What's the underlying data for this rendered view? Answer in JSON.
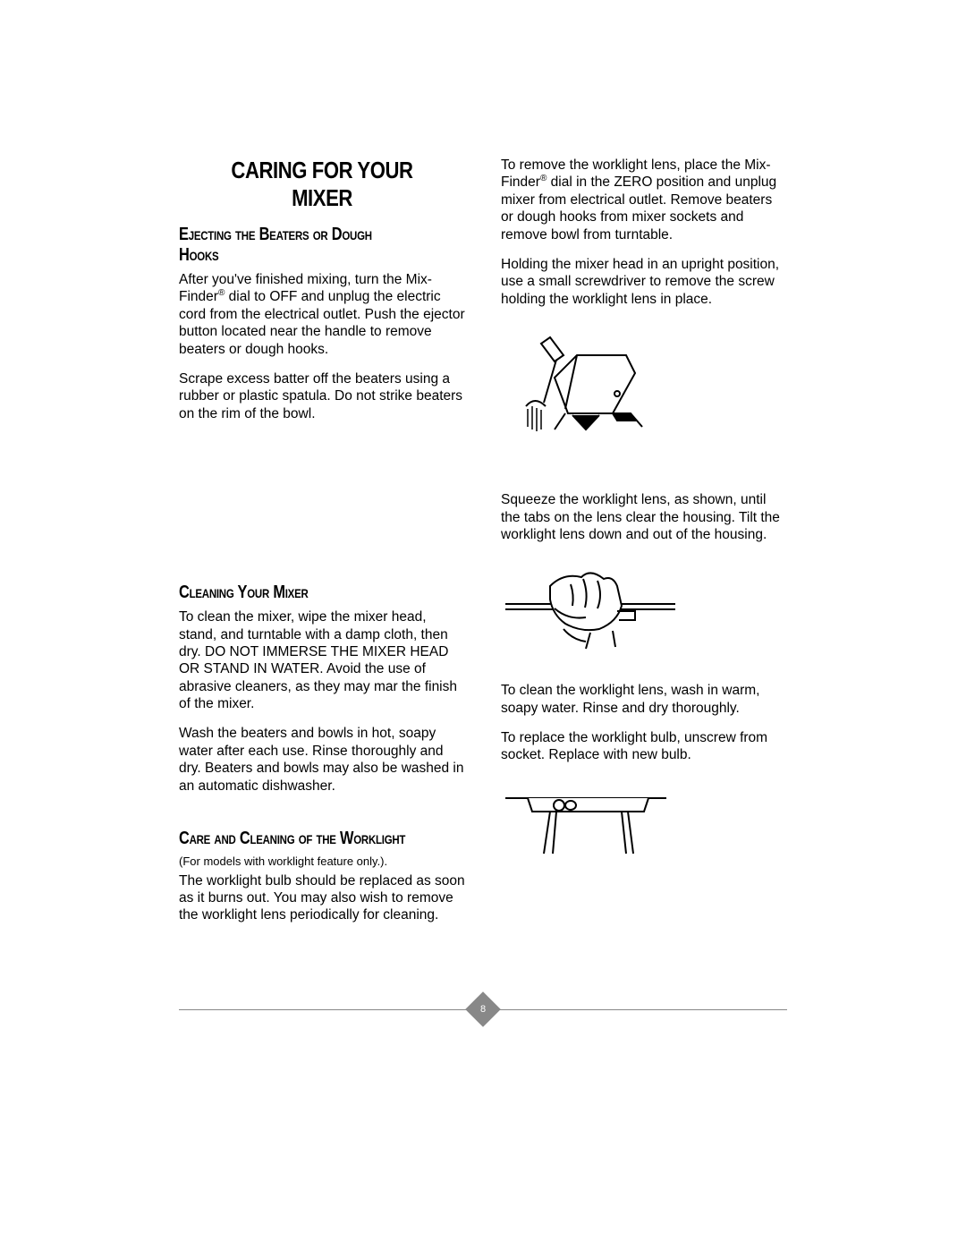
{
  "page_number": "8",
  "colors": {
    "text": "#000000",
    "background": "#ffffff",
    "footer_accent": "#888888"
  },
  "typography": {
    "body_font": "Arial, Helvetica, sans-serif",
    "title_font": "Arial Narrow",
    "main_title_size_pt": 20,
    "sub_title_size_pt": 15,
    "body_size_pt": 11.5,
    "note_size_pt": 9.5
  },
  "main_title": "CARING FOR YOUR MIXER",
  "left_column": {
    "section1": {
      "heading": "Ejecting the Beaters or Dough Hooks",
      "p1": "After you've finished mixing, turn the Mix-Finder® dial to OFF and unplug the electric cord from the electrical outlet. Push the ejector button located near the handle to remove beaters or dough hooks.",
      "p2": "Scrape excess batter off the beaters using a rubber or plastic spatula. Do not strike beaters on the rim of the bowl."
    },
    "section2": {
      "heading": "Cleaning Your Mixer",
      "p1": "To clean the mixer, wipe the mixer head, stand, and turntable with a damp cloth, then dry. DO NOT IMMERSE THE MIXER HEAD OR STAND IN WATER. Avoid the use of abrasive cleaners, as they may mar the finish of the mixer.",
      "p2": "Wash the beaters and bowls in hot, soapy water after each use. Rinse thoroughly and dry. Beaters and bowls may also be washed in an automatic dishwasher."
    },
    "section3": {
      "heading": "Care and Cleaning of the Worklight",
      "note": "(For models with worklight feature only.).",
      "p1": "The worklight bulb should be replaced as soon as it burns out. You may also wish to remove the worklight lens periodically for cleaning."
    }
  },
  "right_column": {
    "p1": "To remove the worklight lens, place the Mix-Finder® dial in the ZERO position and unplug mixer from electrical outlet. Remove beaters or dough hooks from mixer sockets and remove bowl from turntable.",
    "p2": "Holding the mixer head in an upright position, use a small screwdriver to remove the screw holding the worklight lens in place.",
    "p3": "Squeeze the worklight lens, as shown, until the tabs on the lens clear the housing. Tilt the worklight lens down and out of the housing.",
    "p4": "To clean the worklight lens, wash in warm, soapy water. Rinse and dry thoroughly.",
    "p5": "To replace the worklight bulb, unscrew from socket. Replace with new bulb."
  },
  "illustrations": {
    "fig1_alt": "screwdriver-removing-lens-screw",
    "fig2_alt": "hand-squeezing-worklight-lens",
    "fig3_alt": "worklight-bulb-socket"
  }
}
